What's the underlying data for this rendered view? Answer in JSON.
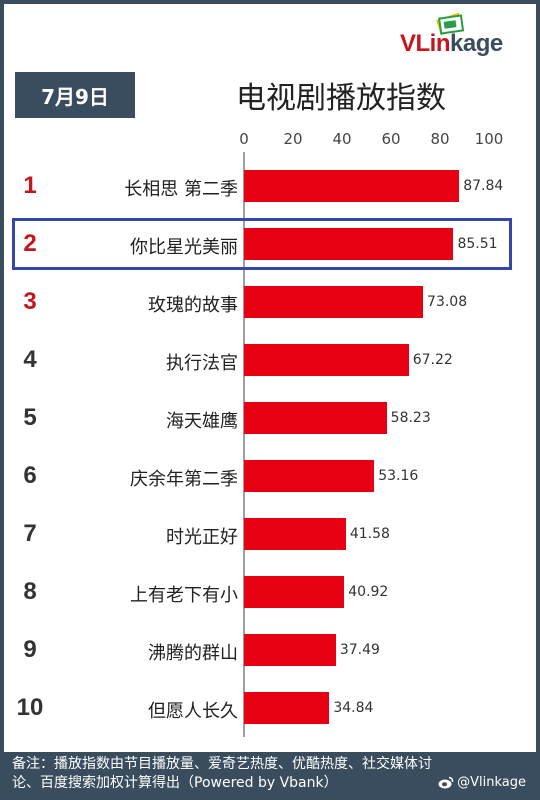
{
  "brand": {
    "logo_v": "VLin",
    "logo_k": "kage"
  },
  "date_badge": "7月9日",
  "title": "电视剧播放指数",
  "footer": {
    "note": "备注：播放指数由节目播放量、爱奇艺热度、优酷热度、社交媒体讨论、百度搜索加权计算得出（Powered by Vbank）",
    "weibo": "@Vlinkage"
  },
  "colors": {
    "bar": "#e60012",
    "header": "#3a4d5f",
    "highlight": "#3347a8",
    "rank_top": "#c4161c"
  },
  "chart_data": {
    "type": "bar",
    "orientation": "horizontal",
    "title": "电视剧播放指数",
    "xlim": [
      0,
      100
    ],
    "ticks": [
      0,
      20,
      40,
      60,
      80,
      100
    ],
    "categories": [
      "长相思 第二季",
      "你比星光美丽",
      "玫瑰的故事",
      "执行法官",
      "海天雄鹰",
      "庆余年第二季",
      "时光正好",
      "上有老下有小",
      "沸腾的群山",
      "但愿人长久"
    ],
    "ranks": [
      "1",
      "2",
      "3",
      "4",
      "5",
      "6",
      "7",
      "8",
      "9",
      "10"
    ],
    "values": [
      87.84,
      85.51,
      73.08,
      67.22,
      58.23,
      53.16,
      41.58,
      40.92,
      37.49,
      34.84
    ],
    "value_labels": [
      "87.84",
      "85.51",
      "73.08",
      "67.22",
      "58.23",
      "53.16",
      "41.58",
      "40.92",
      "37.49",
      "34.84"
    ],
    "highlighted_index": 1,
    "grid": false
  }
}
